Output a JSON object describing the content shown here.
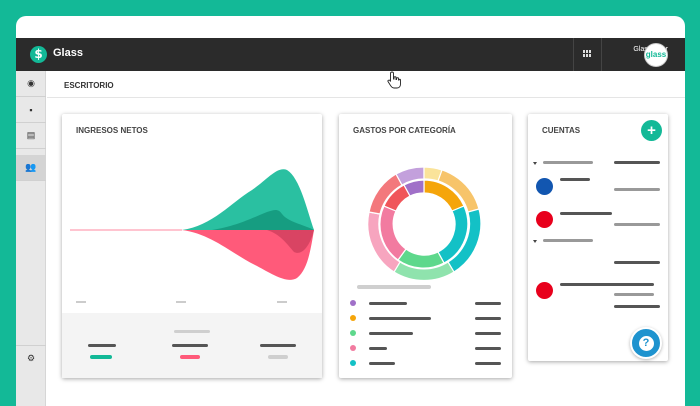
{
  "app": {
    "title": "Glass",
    "logo_glyph": "$"
  },
  "user": {
    "name": "Glass User",
    "handle": "@astro",
    "avatar_text": "glass"
  },
  "breadcrumb": {
    "label": "ESCRITORIO"
  },
  "sidebar": {
    "items": [
      {
        "icon": "eye-icon",
        "glyph": "◉"
      },
      {
        "icon": "book-icon",
        "glyph": "▪"
      },
      {
        "icon": "document-icon",
        "glyph": "▤"
      },
      {
        "icon": "users-icon",
        "glyph": "👥"
      }
    ],
    "bottom": {
      "icon": "gear-icon",
      "glyph": "⚙"
    }
  },
  "cards": {
    "ingresos": {
      "title": "INGRESOS NETOS"
    },
    "gastos": {
      "title": "GASTOS POR CATEGORÍA",
      "legend_colors": [
        "#a070c8",
        "#f5a50a",
        "#5ed88c",
        "#f27ba0",
        "#13c1c6"
      ]
    },
    "cuentas": {
      "title": "CUENTAS",
      "add_glyph": "+"
    }
  },
  "help": {
    "glyph": "?"
  },
  "colors": {
    "accent": "#13b997",
    "topbar": "#2b2b2b",
    "red": "#ff5a7a",
    "blue": "#1256b0",
    "account_red": "#e8001c",
    "help": "#1e93cf"
  }
}
